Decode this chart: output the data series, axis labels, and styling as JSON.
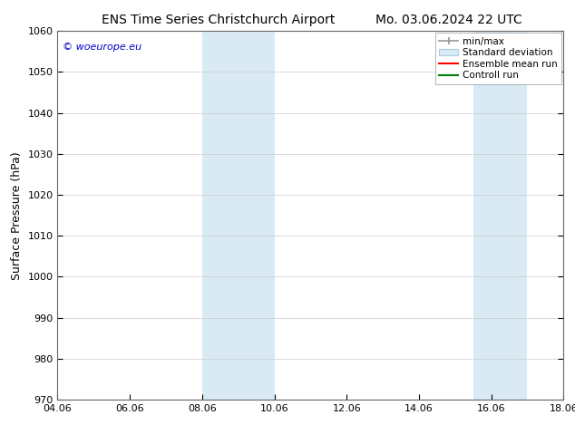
{
  "title_left": "ENS Time Series Christchurch Airport",
  "title_right": "Mo. 03.06.2024 22 UTC",
  "ylabel": "Surface Pressure (hPa)",
  "xlim": [
    4.06,
    18.06
  ],
  "ylim": [
    970,
    1060
  ],
  "yticks": [
    970,
    980,
    990,
    1000,
    1010,
    1020,
    1030,
    1040,
    1050,
    1060
  ],
  "xtick_labels": [
    "04.06",
    "06.06",
    "08.06",
    "10.06",
    "12.06",
    "14.06",
    "16.06",
    "18.06"
  ],
  "xtick_positions": [
    4.06,
    6.06,
    8.06,
    10.06,
    12.06,
    14.06,
    16.06,
    18.06
  ],
  "shaded_bands": [
    {
      "x_start": 8.06,
      "x_end": 10.06
    },
    {
      "x_start": 15.56,
      "x_end": 17.06
    }
  ],
  "shaded_color": "#daeaf5",
  "watermark_text": "© woeurope.eu",
  "watermark_color": "#0000cc",
  "background_color": "#ffffff",
  "grid_color": "#cccccc",
  "title_fontsize": 10,
  "tick_fontsize": 8,
  "label_fontsize": 9,
  "legend_fontsize": 7.5
}
